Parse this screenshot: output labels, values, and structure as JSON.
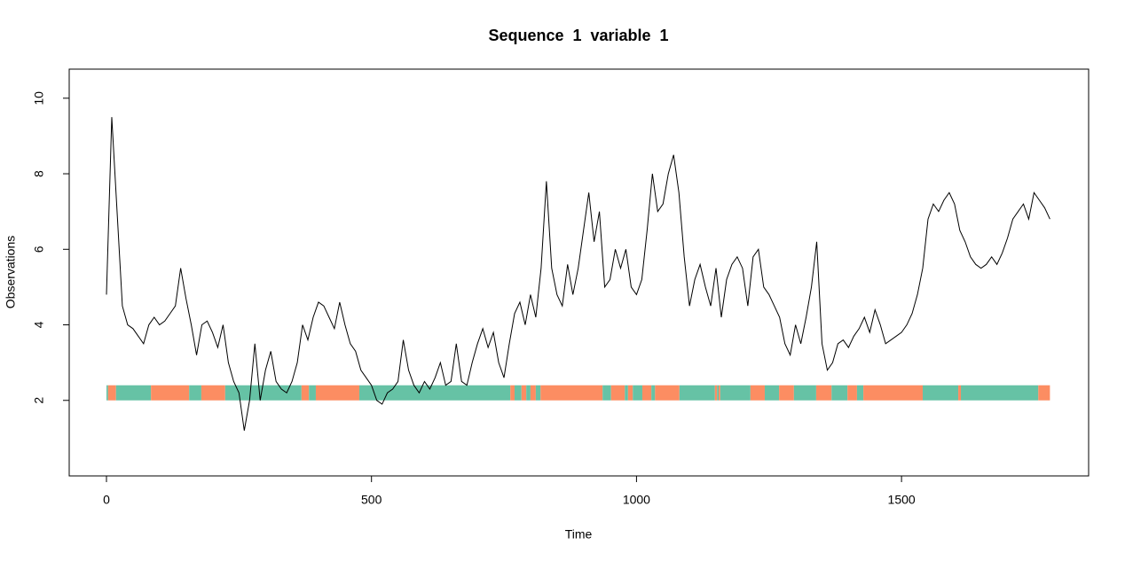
{
  "chart_data": {
    "type": "line",
    "title": "Sequence  1  variable  1",
    "x_label": "Time",
    "y_label": "Observations",
    "x": [
      0,
      10,
      20,
      30,
      40,
      50,
      60,
      70,
      80,
      90,
      100,
      110,
      120,
      130,
      140,
      150,
      160,
      170,
      180,
      190,
      200,
      210,
      220,
      230,
      240,
      250,
      260,
      270,
      280,
      290,
      300,
      310,
      320,
      330,
      340,
      350,
      360,
      370,
      380,
      390,
      400,
      410,
      420,
      430,
      440,
      450,
      460,
      470,
      480,
      490,
      500,
      510,
      520,
      530,
      540,
      550,
      560,
      570,
      580,
      590,
      600,
      610,
      620,
      630,
      640,
      650,
      660,
      670,
      680,
      690,
      700,
      710,
      720,
      730,
      740,
      750,
      760,
      770,
      780,
      790,
      800,
      810,
      820,
      830,
      840,
      850,
      860,
      870,
      880,
      890,
      900,
      910,
      920,
      930,
      940,
      950,
      960,
      970,
      980,
      990,
      1000,
      1010,
      1020,
      1030,
      1040,
      1050,
      1060,
      1070,
      1080,
      1090,
      1100,
      1110,
      1120,
      1130,
      1140,
      1150,
      1160,
      1170,
      1180,
      1190,
      1200,
      1210,
      1220,
      1230,
      1240,
      1250,
      1260,
      1270,
      1280,
      1290,
      1300,
      1310,
      1320,
      1330,
      1340,
      1350,
      1360,
      1370,
      1380,
      1390,
      1400,
      1410,
      1420,
      1430,
      1440,
      1450,
      1460,
      1470,
      1480,
      1490,
      1500,
      1510,
      1520,
      1530,
      1540,
      1550,
      1560,
      1570,
      1580,
      1590,
      1600,
      1610,
      1620,
      1630,
      1640,
      1650,
      1660,
      1670,
      1680,
      1690,
      1700,
      1710,
      1720,
      1730,
      1740,
      1750,
      1760,
      1770,
      1780
    ],
    "series": [
      {
        "color": "#000000",
        "values": [
          4.8,
          9.5,
          7.0,
          4.5,
          4.0,
          3.9,
          3.7,
          3.5,
          4.0,
          4.2,
          4.0,
          4.1,
          4.3,
          4.5,
          5.5,
          4.7,
          4.0,
          3.2,
          4.0,
          4.1,
          3.8,
          3.4,
          4.0,
          3.0,
          2.5,
          2.2,
          1.2,
          2.0,
          3.5,
          2.0,
          2.8,
          3.3,
          2.5,
          2.3,
          2.2,
          2.5,
          3.0,
          4.0,
          3.6,
          4.2,
          4.6,
          4.5,
          4.2,
          3.9,
          4.6,
          4.0,
          3.5,
          3.3,
          2.8,
          2.6,
          2.4,
          2.0,
          1.9,
          2.2,
          2.3,
          2.5,
          3.6,
          2.8,
          2.4,
          2.2,
          2.5,
          2.3,
          2.6,
          3.0,
          2.4,
          2.5,
          3.5,
          2.5,
          2.4,
          3.0,
          3.5,
          3.9,
          3.4,
          3.8,
          3.0,
          2.6,
          3.5,
          4.3,
          4.6,
          4.0,
          4.8,
          4.2,
          5.5,
          7.8,
          5.5,
          4.8,
          4.5,
          5.6,
          4.8,
          5.5,
          6.5,
          7.5,
          6.2,
          7.0,
          5.0,
          5.2,
          6.0,
          5.5,
          6.0,
          5.0,
          4.8,
          5.2,
          6.5,
          8.0,
          7.0,
          7.2,
          8.0,
          8.5,
          7.5,
          5.8,
          4.5,
          5.2,
          5.6,
          5.0,
          4.5,
          5.5,
          4.2,
          5.2,
          5.6,
          5.8,
          5.5,
          4.5,
          5.8,
          6.0,
          5.0,
          4.8,
          4.5,
          4.2,
          3.5,
          3.2,
          4.0,
          3.5,
          4.2,
          5.0,
          6.2,
          3.5,
          2.8,
          3.0,
          3.5,
          3.6,
          3.4,
          3.7,
          3.9,
          4.2,
          3.8,
          4.4,
          4.0,
          3.5,
          3.6,
          3.7,
          3.8,
          4.0,
          4.3,
          4.8,
          5.5,
          6.8,
          7.2,
          7.0,
          7.3,
          7.5,
          7.2,
          6.5,
          6.2,
          5.8,
          5.6,
          5.5,
          5.6,
          5.8,
          5.6,
          5.9,
          6.3,
          6.8,
          7.0,
          7.2,
          6.8,
          7.5,
          7.3,
          7.1,
          6.8
        ]
      }
    ],
    "band_y": [
      2,
      2.4
    ],
    "band_breaks": [
      0,
      3,
      18,
      84,
      156,
      179,
      224,
      368,
      382,
      395,
      477,
      762,
      770,
      783,
      792,
      800,
      810,
      819,
      936,
      952,
      978,
      984,
      993,
      1011,
      1028,
      1035,
      1081,
      1148,
      1152,
      1155,
      1158,
      1215,
      1242,
      1269,
      1297,
      1339,
      1368,
      1398,
      1416,
      1428,
      1540,
      1607,
      1612,
      1758,
      1780
    ],
    "band_colors": [
      "#66c2a5",
      "#fc8d62",
      "#66c2a5",
      "#fc8d62",
      "#66c2a5",
      "#fc8d62",
      "#66c2a5",
      "#fc8d62",
      "#66c2a5",
      "#fc8d62",
      "#66c2a5",
      "#fc8d62",
      "#66c2a5",
      "#fc8d62",
      "#66c2a5",
      "#fc8d62",
      "#66c2a5",
      "#fc8d62",
      "#66c2a5",
      "#fc8d62",
      "#66c2a5",
      "#fc8d62",
      "#66c2a5",
      "#fc8d62",
      "#66c2a5",
      "#fc8d62",
      "#66c2a5",
      "#fc8d62",
      "#66c2a5",
      "#fc8d62",
      "#66c2a5",
      "#fc8d62",
      "#66c2a5",
      "#fc8d62",
      "#66c2a5",
      "#fc8d62",
      "#66c2a5",
      "#fc8d62",
      "#66c2a5",
      "#fc8d62",
      "#66c2a5",
      "#fc8d62",
      "#66c2a5",
      "#fc8d62"
    ],
    "xlim": [
      -70.3,
      1853
    ],
    "ylim": [
      0,
      10.77
    ],
    "xticks": [
      0,
      500,
      1000,
      1500
    ],
    "yticks": [
      2,
      4,
      6,
      8,
      10
    ]
  }
}
